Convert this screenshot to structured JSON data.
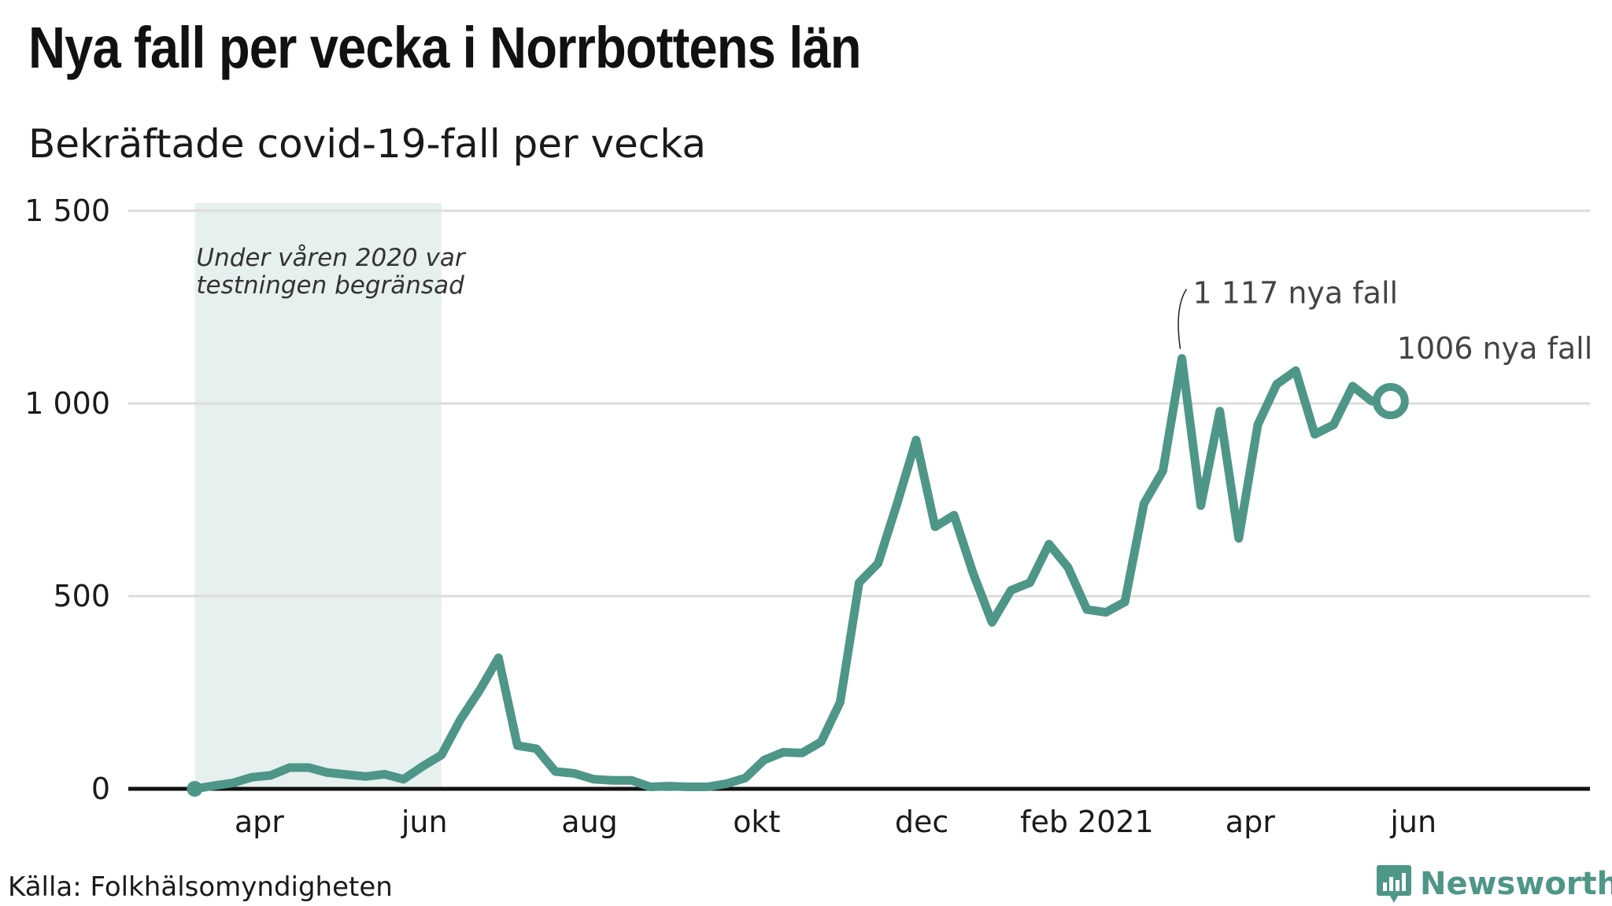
{
  "title": "Nya fall per vecka i Norrbottens län",
  "subtitle": "Bekräftade covid-19-fall per vecka",
  "source": "Källa: Folkhälsomyndigheten",
  "brand": "Newsworthy",
  "colors": {
    "line": "#4e9688",
    "shade": "#e6f0ee",
    "grid": "#dcdcdc",
    "axis": "#111111",
    "annotation": "#444444"
  },
  "chart_data": {
    "type": "line",
    "title": "Nya fall per vecka i Norrbottens län",
    "subtitle": "Bekräftade covid-19-fall per vecka",
    "xlabel": "",
    "ylabel": "",
    "ylim": [
      0,
      1500
    ],
    "y_ticks": [
      {
        "value": 0,
        "label": "0"
      },
      {
        "value": 500,
        "label": "500"
      },
      {
        "value": 1000,
        "label": "1 000"
      },
      {
        "value": 1500,
        "label": "1 500"
      }
    ],
    "x_ticks": [
      {
        "week_index": 3.4,
        "label": "apr"
      },
      {
        "week_index": 12.1,
        "label": "jun"
      },
      {
        "week_index": 20.8,
        "label": "aug"
      },
      {
        "week_index": 29.6,
        "label": "okt"
      },
      {
        "week_index": 38.3,
        "label": "dec"
      },
      {
        "week_index": 47.0,
        "label": "feb 2021"
      },
      {
        "week_index": 55.6,
        "label": "apr"
      },
      {
        "week_index": 64.2,
        "label": "jun"
      }
    ],
    "x_range": [
      -3.5,
      73.5
    ],
    "shaded_region": {
      "from": 0,
      "to": 13,
      "label_lines": [
        "Under våren 2020 var",
        "testningen begränsad"
      ]
    },
    "series": [
      {
        "name": "Nya fall per vecka",
        "values": [
          0,
          8,
          15,
          30,
          35,
          55,
          55,
          42,
          37,
          32,
          38,
          25,
          58,
          88,
          180,
          255,
          340,
          112,
          104,
          45,
          40,
          25,
          22,
          22,
          5,
          7,
          5,
          5,
          13,
          28,
          75,
          95,
          93,
          122,
          225,
          535,
          585,
          740,
          905,
          680,
          710,
          560,
          432,
          515,
          535,
          635,
          575,
          465,
          458,
          485,
          740,
          825,
          1117,
          735,
          980,
          650,
          945,
          1050,
          1085,
          920,
          945,
          1045,
          1006
        ]
      }
    ],
    "annotations": [
      {
        "week_index": 52,
        "value": 1117,
        "text": "1 117 nya fall"
      },
      {
        "week_index": 63,
        "value": 1006,
        "text": "1006 nya fall"
      }
    ]
  }
}
